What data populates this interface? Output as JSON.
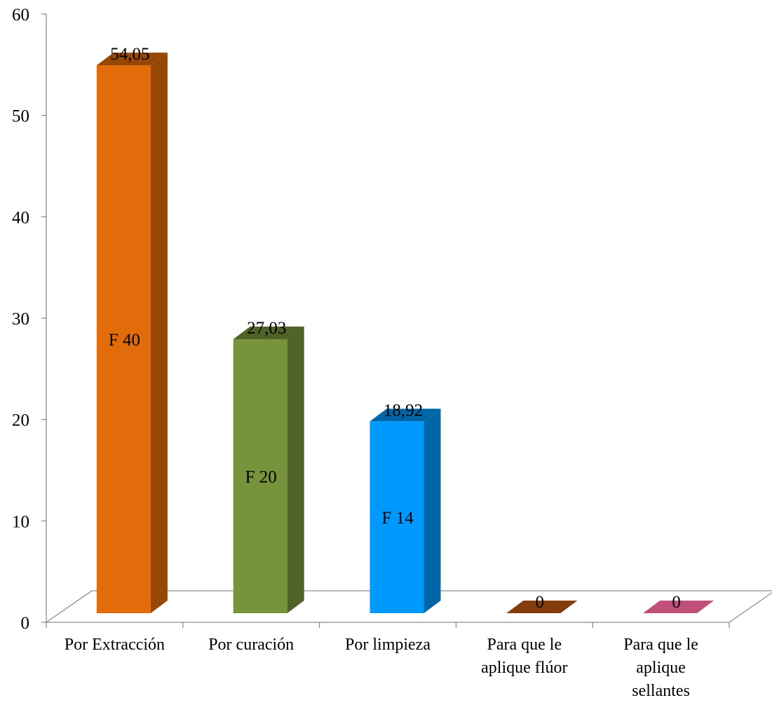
{
  "chart_data": {
    "type": "bar",
    "title": "",
    "xlabel": "",
    "ylabel": "",
    "ylim": [
      0,
      60
    ],
    "yticks": [
      "0",
      "10",
      "20",
      "30",
      "40",
      "50",
      "60"
    ],
    "categories": [
      [
        "Por Extracción"
      ],
      [
        "Por curación"
      ],
      [
        "Por limpieza"
      ],
      [
        "Para que le",
        "aplique flúor"
      ],
      [
        "Para que le",
        "aplique",
        "sellantes"
      ]
    ],
    "values": [
      54.05,
      27.03,
      18.92,
      0,
      0
    ],
    "value_labels": [
      "54,05",
      "27,03",
      "18,92",
      "0",
      "0"
    ],
    "inner_labels": [
      "F 40",
      "F 20",
      "F 14",
      "",
      ""
    ],
    "colors": [
      {
        "front": "#E36C0A",
        "side": "#974706"
      },
      {
        "front": "#77933C",
        "side": "#4F6228"
      },
      {
        "front": "#0099FF",
        "side": "#0066A8"
      },
      {
        "front": "#843C0C",
        "side": "#5E2A08"
      },
      {
        "front": "#C0507A",
        "side": "#8C3A59"
      }
    ],
    "grid": false,
    "legend": "none",
    "style": "3d-column"
  }
}
